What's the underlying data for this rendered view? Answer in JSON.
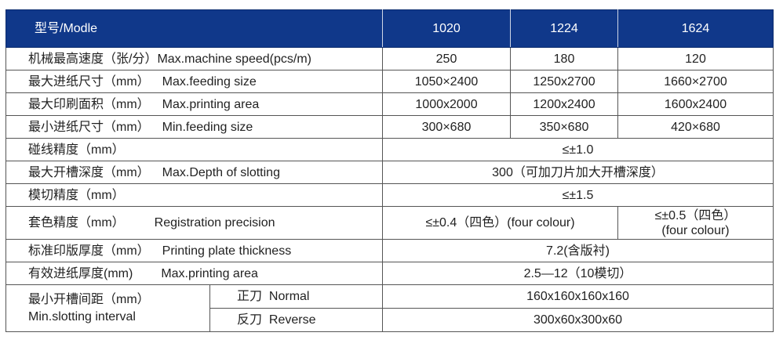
{
  "header": {
    "label": "型号/Modle",
    "models": [
      "1020",
      "1224",
      "1624"
    ]
  },
  "rows": [
    {
      "cn": "机械最高速度（张/分）",
      "en": "Max.machine  speed(pcs/m)",
      "values": [
        "250",
        "180",
        "120"
      ]
    },
    {
      "cn": "最大进纸尺寸（mm）",
      "en": "Max.feeding size",
      "values": [
        "1050×2400",
        "1250x2700",
        "1660×2700"
      ]
    },
    {
      "cn": "最大印刷面积（mm）",
      "en": "Max.printing area",
      "values": [
        "1000x2000",
        "1200x2400",
        "1600x2400"
      ]
    },
    {
      "cn": "最小进纸尺寸（mm）",
      "en": "Min.feeding size",
      "values": [
        "300×680",
        "350×680",
        "420×680"
      ]
    },
    {
      "cn": "碰线精度（mm）",
      "en": "",
      "value": "≤±1.0"
    },
    {
      "cn": "最大开槽深度（mm）",
      "en": "Max.Depth of slotting",
      "value": "300（可加刀片加大开槽深度）"
    },
    {
      "cn": "模切精度（mm）",
      "en": "",
      "value": "≤±1.5"
    },
    {
      "cn": "套色精度（mm）",
      "en": "Registration precision",
      "values": [
        "≤±0.4（四色）(four colour)",
        "≤±0.5（四色）",
        "(four colour)"
      ]
    },
    {
      "cn": "标准印版厚度（mm）",
      "en": "Printing plate thickness",
      "value": "7.2(含版衬)"
    },
    {
      "cn": "有效进纸厚度(mm)",
      "en": "Max.printing area",
      "value": "2.5—12（10模切）"
    }
  ],
  "slotting": {
    "cn": "最小开槽间距（mm）",
    "en": "Min.slotting interval",
    "normal": {
      "cn": "正刀",
      "en": "Normal",
      "value": "160x160x160x160"
    },
    "reverse": {
      "cn": "反刀",
      "en": "Reverse",
      "value": "300x60x300x60"
    }
  }
}
